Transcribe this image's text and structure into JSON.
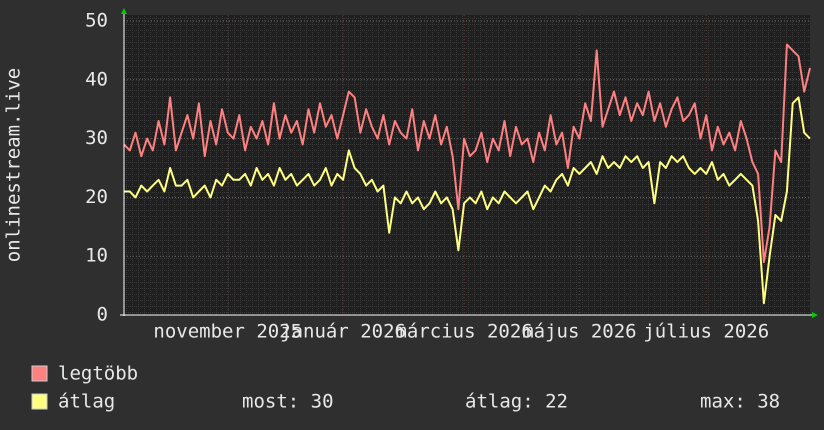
{
  "chart_data": {
    "type": "line",
    "y_label": "onlinestream.live",
    "categories": [
      null,
      null,
      null,
      null,
      null,
      null,
      null,
      null,
      null,
      null,
      null,
      null,
      null,
      null,
      null,
      null,
      null,
      null,
      "november 2025",
      null,
      null,
      null,
      null,
      null,
      null,
      null,
      null,
      null,
      null,
      null,
      null,
      null,
      null,
      null,
      null,
      null,
      null,
      null,
      "január 2026",
      null,
      null,
      null,
      null,
      null,
      null,
      null,
      null,
      null,
      null,
      null,
      null,
      null,
      null,
      null,
      null,
      null,
      null,
      null,
      null,
      "március 2026",
      null,
      null,
      null,
      null,
      null,
      null,
      null,
      null,
      null,
      null,
      null,
      null,
      null,
      null,
      null,
      null,
      null,
      null,
      null,
      "május 2026",
      null,
      null,
      null,
      null,
      null,
      null,
      null,
      null,
      null,
      null,
      null,
      null,
      null,
      null,
      null,
      null,
      null,
      null,
      null,
      null,
      null,
      "július 2026",
      null,
      null,
      null,
      null,
      null,
      null,
      null,
      null,
      null,
      null,
      null,
      null,
      null,
      null,
      null,
      null,
      null,
      null
    ],
    "series": [
      {
        "name": "legtöbb",
        "color": "#ff8080",
        "values": [
          29,
          28,
          31,
          27,
          30,
          28,
          33,
          29,
          37,
          28,
          31,
          34,
          30,
          36,
          27,
          33,
          29,
          35,
          31,
          30,
          34,
          28,
          32,
          30,
          33,
          29,
          36,
          30,
          34,
          31,
          33,
          29,
          35,
          31,
          36,
          32,
          34,
          30,
          34,
          38,
          37,
          31,
          35,
          32,
          30,
          34,
          29,
          33,
          31,
          30,
          35,
          28,
          33,
          30,
          34,
          29,
          32,
          27,
          18,
          30,
          27,
          28,
          31,
          26,
          30,
          28,
          33,
          27,
          32,
          29,
          30,
          26,
          31,
          28,
          34,
          29,
          31,
          25,
          32,
          30,
          36,
          33,
          45,
          32,
          35,
          38,
          34,
          37,
          33,
          36,
          34,
          38,
          33,
          36,
          32,
          35,
          37,
          33,
          34,
          36,
          30,
          34,
          28,
          32,
          29,
          31,
          28,
          33,
          30,
          26,
          24,
          9,
          15,
          28,
          26,
          46,
          45,
          44,
          38,
          42
        ]
      },
      {
        "name": "átlag",
        "color": "#ffff80",
        "values": [
          21,
          21,
          20,
          22,
          21,
          22,
          23,
          21,
          25,
          22,
          22,
          23,
          20,
          21,
          22,
          20,
          23,
          22,
          24,
          23,
          23,
          24,
          22,
          25,
          23,
          24,
          22,
          25,
          23,
          24,
          22,
          23,
          24,
          22,
          23,
          25,
          22,
          24,
          23,
          28,
          25,
          24,
          22,
          23,
          21,
          22,
          14,
          20,
          19,
          21,
          19,
          20,
          18,
          19,
          21,
          19,
          20,
          18,
          11,
          19,
          20,
          19,
          21,
          18,
          20,
          19,
          21,
          20,
          19,
          20,
          21,
          18,
          20,
          22,
          21,
          23,
          24,
          22,
          25,
          24,
          25,
          26,
          24,
          27,
          25,
          26,
          25,
          27,
          26,
          27,
          25,
          26,
          19,
          26,
          25,
          27,
          26,
          27,
          25,
          24,
          25,
          24,
          26,
          23,
          24,
          22,
          23,
          24,
          23,
          22,
          16,
          2,
          10,
          17,
          16,
          21,
          36,
          37,
          31,
          30
        ]
      }
    ],
    "legend_stats": [
      "most: 30",
      "átlag: 22",
      "max: 38"
    ],
    "ylim": [
      0,
      50
    ],
    "yticks": [
      0,
      10,
      20,
      30,
      40,
      50
    ],
    "grid": true
  }
}
